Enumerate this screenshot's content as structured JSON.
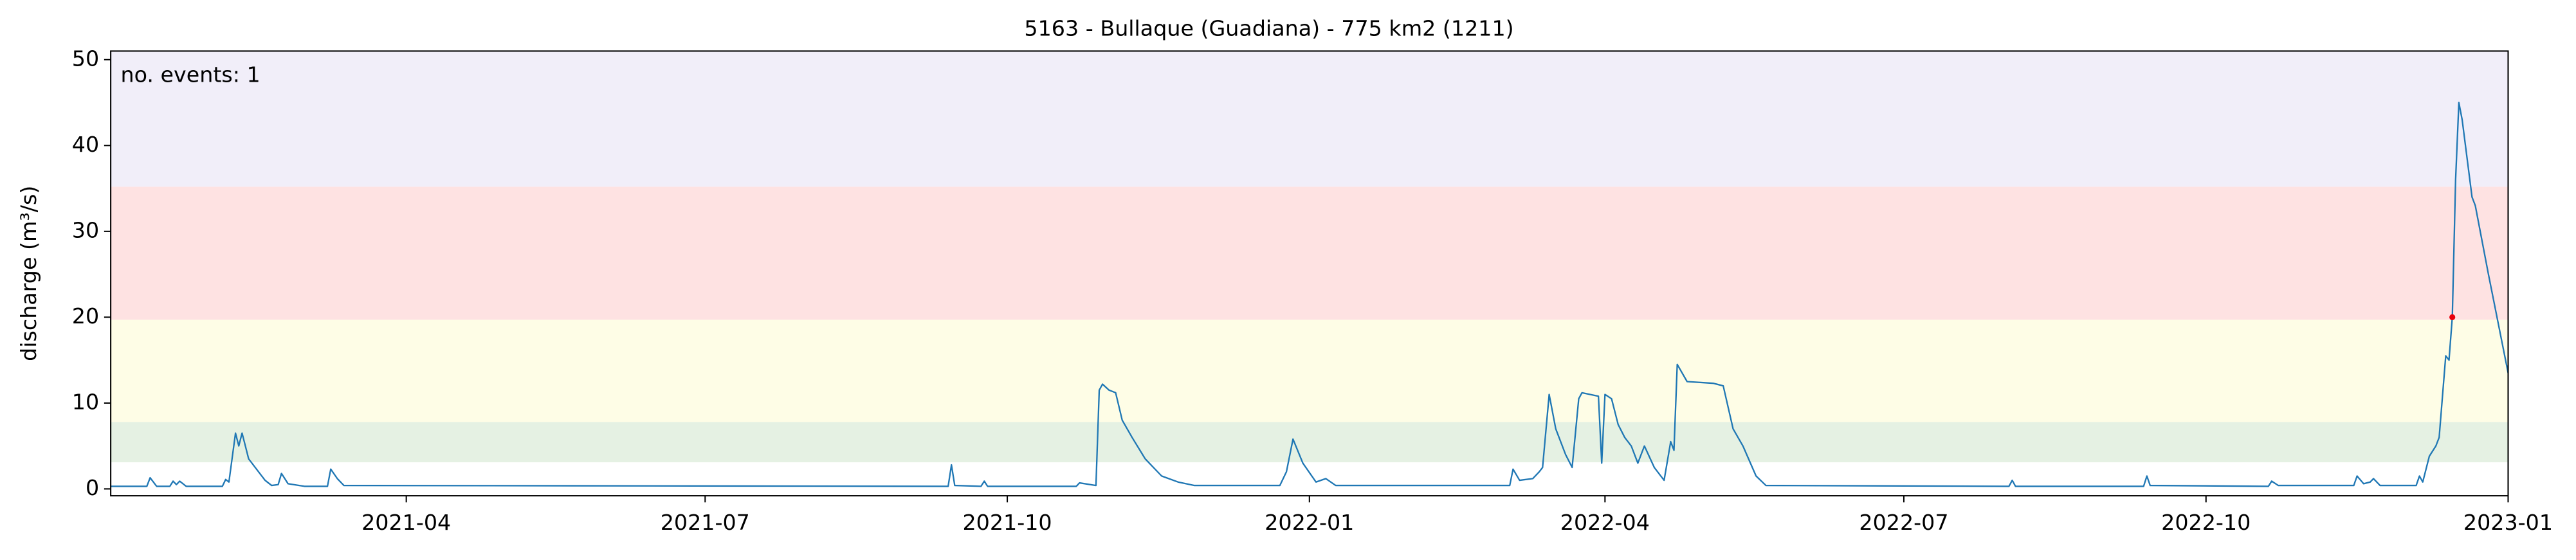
{
  "chart_data": {
    "type": "line",
    "title": "5163 - Bullaque (Guadiana) - 775 km2 (1211)",
    "y_label": "discharge (m³/s)",
    "annotation": "no. events: 1",
    "annotation_color": "#e8000b",
    "xlim": [
      "2021-01-01",
      "2023-01-01"
    ],
    "xticks": [
      {
        "value": "2021-04-01",
        "label": "2021-04"
      },
      {
        "value": "2021-07-01",
        "label": "2021-07"
      },
      {
        "value": "2021-10-01",
        "label": "2021-10"
      },
      {
        "value": "2022-01-01",
        "label": "2022-01"
      },
      {
        "value": "2022-04-01",
        "label": "2022-04"
      },
      {
        "value": "2022-07-01",
        "label": "2022-07"
      },
      {
        "value": "2022-10-01",
        "label": "2022-10"
      },
      {
        "value": "2023-01-01",
        "label": "2023-01"
      }
    ],
    "ylim": [
      -0.8,
      51
    ],
    "yticks": [
      0,
      10,
      20,
      30,
      40,
      50
    ],
    "bands": [
      {
        "range": [
          3.1,
          7.8
        ],
        "color": "#e5f1e3"
      },
      {
        "range": [
          7.8,
          19.7
        ],
        "color": "#fefde6"
      },
      {
        "range": [
          19.7,
          35.2
        ],
        "color": "#fee2e2"
      },
      {
        "range": [
          35.2,
          51
        ],
        "color": "#f1eef9"
      }
    ],
    "series": [
      {
        "color": "#1f77b4",
        "x": [
          "2021-01-01",
          "2021-01-12",
          "2021-01-13",
          "2021-01-15",
          "2021-01-19",
          "2021-01-20",
          "2021-01-21",
          "2021-01-22",
          "2021-01-24",
          "2021-02-04",
          "2021-02-05",
          "2021-02-06",
          "2021-02-08",
          "2021-02-09",
          "2021-02-10",
          "2021-02-12",
          "2021-02-14",
          "2021-02-17",
          "2021-02-19",
          "2021-02-21",
          "2021-02-22",
          "2021-02-24",
          "2021-03-01",
          "2021-03-08",
          "2021-03-09",
          "2021-03-11",
          "2021-03-13",
          "2021-09-13",
          "2021-09-14",
          "2021-09-15",
          "2021-09-23",
          "2021-09-24",
          "2021-09-25",
          "2021-10-22",
          "2021-10-23",
          "2021-10-28",
          "2021-10-29",
          "2021-10-30",
          "2021-11-01",
          "2021-11-03",
          "2021-11-05",
          "2021-11-08",
          "2021-11-12",
          "2021-11-17",
          "2021-11-22",
          "2021-11-27",
          "2021-12-23",
          "2021-12-25",
          "2021-12-27",
          "2021-12-30",
          "2022-01-03",
          "2022-01-06",
          "2022-01-09",
          "2022-03-03",
          "2022-03-04",
          "2022-03-06",
          "2022-03-10",
          "2022-03-12",
          "2022-03-13",
          "2022-03-15",
          "2022-03-17",
          "2022-03-20",
          "2022-03-22",
          "2022-03-24",
          "2022-03-25",
          "2022-03-30",
          "2022-03-31",
          "2022-04-01",
          "2022-04-03",
          "2022-04-05",
          "2022-04-07",
          "2022-04-09",
          "2022-04-11",
          "2022-04-13",
          "2022-04-16",
          "2022-04-19",
          "2022-04-21",
          "2022-04-22",
          "2022-04-23",
          "2022-04-26",
          "2022-05-04",
          "2022-05-07",
          "2022-05-10",
          "2022-05-13",
          "2022-05-17",
          "2022-05-20",
          "2022-08-02",
          "2022-08-03",
          "2022-08-04",
          "2022-09-12",
          "2022-09-13",
          "2022-09-14",
          "2022-10-20",
          "2022-10-21",
          "2022-10-23",
          "2022-11-15",
          "2022-11-16",
          "2022-11-18",
          "2022-11-20",
          "2022-11-21",
          "2022-11-23",
          "2022-12-04",
          "2022-12-05",
          "2022-12-06",
          "2022-12-08",
          "2022-12-10",
          "2022-12-11",
          "2022-12-13",
          "2022-12-14",
          "2022-12-15",
          "2022-12-16",
          "2022-12-17",
          "2022-12-18",
          "2022-12-21",
          "2022-12-22",
          "2022-12-26",
          "2023-01-01"
        ],
        "values": [
          0.3,
          0.3,
          1.3,
          0.3,
          0.3,
          0.9,
          0.5,
          0.9,
          0.3,
          0.3,
          1.1,
          0.8,
          6.5,
          5,
          6.5,
          3.5,
          2.5,
          1,
          0.4,
          0.5,
          1.8,
          0.6,
          0.3,
          0.3,
          2.3,
          1.2,
          0.4,
          0.3,
          2.8,
          0.4,
          0.3,
          0.9,
          0.3,
          0.3,
          0.7,
          0.4,
          11.5,
          12.2,
          11.5,
          11.2,
          8,
          6,
          3.5,
          1.5,
          0.8,
          0.4,
          0.4,
          2,
          5.8,
          3,
          0.8,
          1.2,
          0.4,
          0.4,
          2.3,
          1,
          1.2,
          2,
          2.5,
          11,
          7,
          4,
          2.5,
          10.5,
          11.2,
          10.8,
          3,
          11,
          10.5,
          7.5,
          6,
          5,
          3,
          5,
          2.5,
          1,
          5.5,
          4.5,
          14.5,
          12.5,
          12.3,
          12,
          7,
          5,
          1.5,
          0.4,
          0.3,
          1,
          0.3,
          0.3,
          1.5,
          0.4,
          0.3,
          0.9,
          0.4,
          0.4,
          1.5,
          0.6,
          0.8,
          1.2,
          0.4,
          0.4,
          1.5,
          0.8,
          3.8,
          5,
          6,
          15.5,
          15,
          20,
          36,
          45,
          43,
          34,
          33,
          25,
          13.5
        ]
      }
    ],
    "events": {
      "x": [
        "2022-12-15"
      ],
      "values": [
        20
      ],
      "color": "#e8000b"
    }
  }
}
